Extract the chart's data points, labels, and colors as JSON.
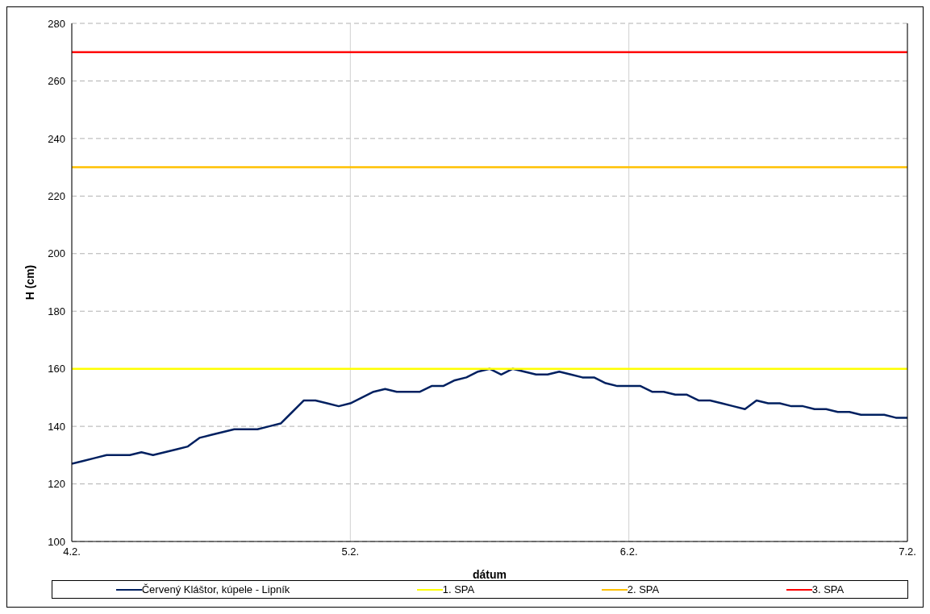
{
  "chart_data": {
    "type": "line",
    "xlabel": "dátum",
    "ylabel": "H (cm)",
    "xlim": [
      "--02-04",
      "--02-07"
    ],
    "xticks": [
      {
        "value": "--02-04",
        "label": "4.2."
      },
      {
        "value": "--02-05",
        "label": "5.2."
      },
      {
        "value": "--02-06",
        "label": "6.2."
      },
      {
        "value": "--02-07",
        "label": "7.2."
      }
    ],
    "ylim": [
      100,
      280
    ],
    "yticks": [
      100,
      120,
      140,
      160,
      180,
      200,
      220,
      240,
      260,
      280
    ],
    "grid": true,
    "legend": "bottom",
    "marker": "none",
    "line_style": "solid",
    "series": [
      {
        "name": "Červený Kláštor, kúpele - Lipník",
        "color": "#002060",
        "x": [
          "--02-04T00:00",
          "--02-04T01:00",
          "--02-04T02:00",
          "--02-04T03:00",
          "--02-04T05:00",
          "--02-04T06:00",
          "--02-04T07:00",
          "--02-04T08:00",
          "--02-04T09:00",
          "--02-04T10:00",
          "--02-04T11:00",
          "--02-04T12:00",
          "--02-04T13:00",
          "--02-04T14:00",
          "--02-04T16:00",
          "--02-04T17:00",
          "--02-04T18:00",
          "--02-04T19:00",
          "--02-04T20:00",
          "--02-04T21:00",
          "--02-04T22:00",
          "--02-04T23:00",
          "--02-05T00:00",
          "--02-05T01:00",
          "--02-05T02:00",
          "--02-05T03:00",
          "--02-05T04:00",
          "--02-05T06:00",
          "--02-05T07:00",
          "--02-05T08:00",
          "--02-05T09:00",
          "--02-05T10:00",
          "--02-05T11:00",
          "--02-05T12:00",
          "--02-05T13:00",
          "--02-05T14:00",
          "--02-05T15:00",
          "--02-05T16:00",
          "--02-05T17:00",
          "--02-05T18:00",
          "--02-05T19:00",
          "--02-05T20:00",
          "--02-05T21:00",
          "--02-05T22:00",
          "--02-05T23:00",
          "--02-06T00:00",
          "--02-06T01:00",
          "--02-06T02:00",
          "--02-06T03:00",
          "--02-06T04:00",
          "--02-06T05:00",
          "--02-06T06:00",
          "--02-06T07:00",
          "--02-06T08:00",
          "--02-06T09:00",
          "--02-06T10:00",
          "--02-06T11:00",
          "--02-06T12:00",
          "--02-06T13:00",
          "--02-06T14:00",
          "--02-06T15:00",
          "--02-06T16:00",
          "--02-06T17:00",
          "--02-06T18:00",
          "--02-06T19:00",
          "--02-06T20:00",
          "--02-06T21:00",
          "--02-06T22:00",
          "--02-06T23:00",
          "--02-07T00:00"
        ],
        "values": [
          127,
          128,
          129,
          130,
          130,
          131,
          130,
          131,
          132,
          133,
          136,
          137,
          138,
          139,
          139,
          140,
          141,
          145,
          149,
          149,
          148,
          147,
          148,
          150,
          152,
          153,
          152,
          152,
          154,
          154,
          156,
          157,
          159,
          160,
          158,
          160,
          159,
          158,
          158,
          159,
          158,
          157,
          157,
          155,
          154,
          154,
          154,
          152,
          152,
          151,
          151,
          149,
          149,
          148,
          147,
          146,
          149,
          148,
          148,
          147,
          147,
          146,
          146,
          145,
          145,
          144,
          144,
          144,
          143,
          143
        ]
      },
      {
        "name": "1. SPA",
        "color": "#ffff00",
        "x": [
          "--02-04",
          "--02-07"
        ],
        "values": [
          160,
          160
        ]
      },
      {
        "name": "2. SPA",
        "color": "#ffc000",
        "x": [
          "--02-04",
          "--02-07"
        ],
        "values": [
          230,
          230
        ]
      },
      {
        "name": "3. SPA",
        "color": "#ff0000",
        "x": [
          "--02-04",
          "--02-07"
        ],
        "values": [
          270,
          270
        ]
      }
    ]
  }
}
